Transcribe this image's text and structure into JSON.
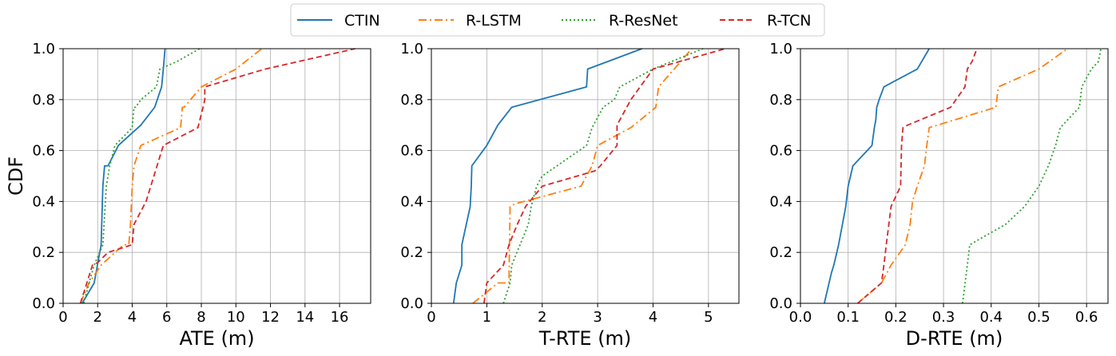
{
  "legend": {
    "placement": "top-center",
    "items": [
      {
        "name": "CTIN",
        "color": "#1f77b4",
        "dash": "solid"
      },
      {
        "name": "R-LSTM",
        "color": "#ff7f0e",
        "dash": "dashdot"
      },
      {
        "name": "R-ResNet",
        "color": "#2ca02c",
        "dash": "dotted"
      },
      {
        "name": "R-TCN",
        "color": "#d62728",
        "dash": "dashed"
      }
    ]
  },
  "chart_data": [
    {
      "type": "line",
      "xlabel": "ATE (m)",
      "ylabel": "CDF",
      "xlim": [
        0,
        17.8
      ],
      "ylim": [
        0,
        1.0
      ],
      "xticks": [
        "0",
        "2",
        "4",
        "6",
        "8",
        "10",
        "12",
        "14",
        "16"
      ],
      "xtick_values": [
        0,
        2,
        4,
        6,
        8,
        10,
        12,
        14,
        16
      ],
      "yticks": [
        "0.0",
        "0.2",
        "0.4",
        "0.6",
        "0.8",
        "1.0"
      ],
      "ytick_values": [
        0,
        0.2,
        0.4,
        0.6,
        0.8,
        1.0
      ],
      "grid": true,
      "series": [
        {
          "name": "CTIN",
          "x": [
            1.1,
            1.8,
            2.2,
            2.3,
            2.4,
            2.6,
            3.2,
            4.5,
            5.3,
            5.7,
            5.8,
            5.9
          ],
          "y": [
            0.0,
            0.08,
            0.23,
            0.46,
            0.54,
            0.54,
            0.62,
            0.7,
            0.77,
            0.85,
            0.92,
            1.0
          ]
        },
        {
          "name": "R-LSTM",
          "x": [
            1.0,
            1.5,
            2.2,
            3.5,
            3.8,
            3.9,
            4.0,
            4.1,
            4.5,
            6.8,
            6.9,
            7.0,
            8.0,
            10.0,
            11.5
          ],
          "y": [
            0.0,
            0.08,
            0.15,
            0.23,
            0.23,
            0.31,
            0.46,
            0.54,
            0.62,
            0.69,
            0.77,
            0.77,
            0.85,
            0.92,
            1.0
          ]
        },
        {
          "name": "R-ResNet",
          "x": [
            1.2,
            1.5,
            1.8,
            2.3,
            2.5,
            2.7,
            3.0,
            4.0,
            4.1,
            4.2,
            4.5,
            5.4,
            5.6,
            6.6,
            7.9
          ],
          "y": [
            0.0,
            0.08,
            0.15,
            0.23,
            0.46,
            0.54,
            0.62,
            0.69,
            0.77,
            0.77,
            0.8,
            0.85,
            0.92,
            0.95,
            1.0
          ]
        },
        {
          "name": "R-TCN",
          "x": [
            1.0,
            1.7,
            2.0,
            2.6,
            4.0,
            4.1,
            4.8,
            5.8,
            7.8,
            8.1,
            8.2,
            8.2,
            11.7,
            16.9
          ],
          "y": [
            0.0,
            0.15,
            0.16,
            0.2,
            0.23,
            0.31,
            0.4,
            0.62,
            0.69,
            0.77,
            0.8,
            0.85,
            0.92,
            1.0
          ]
        }
      ]
    },
    {
      "type": "line",
      "xlabel": "T-RTE (m)",
      "ylabel": "",
      "xlim": [
        0,
        5.55
      ],
      "ylim": [
        0,
        1.0
      ],
      "xticks": [
        "0",
        "1",
        "2",
        "3",
        "4",
        "5"
      ],
      "xtick_values": [
        0,
        1,
        2,
        3,
        4,
        5
      ],
      "yticks": [
        "0.0",
        "0.2",
        "0.4",
        "0.6",
        "0.8",
        "1.0"
      ],
      "ytick_values": [
        0,
        0.2,
        0.4,
        0.6,
        0.8,
        1.0
      ],
      "grid": true,
      "series": [
        {
          "name": "CTIN",
          "x": [
            0.4,
            0.45,
            0.55,
            0.55,
            0.7,
            0.72,
            0.73,
            1.0,
            1.2,
            1.45,
            2.8,
            2.82,
            3.8
          ],
          "y": [
            0.0,
            0.08,
            0.15,
            0.23,
            0.38,
            0.46,
            0.54,
            0.62,
            0.7,
            0.77,
            0.85,
            0.92,
            1.0
          ]
        },
        {
          "name": "R-LSTM",
          "x": [
            0.75,
            1.2,
            1.4,
            1.42,
            1.5,
            2.7,
            2.9,
            3.0,
            3.6,
            4.05,
            4.1,
            4.7
          ],
          "y": [
            0.0,
            0.08,
            0.08,
            0.38,
            0.39,
            0.46,
            0.54,
            0.62,
            0.69,
            0.77,
            0.85,
            1.0
          ]
        },
        {
          "name": "R-ResNet",
          "x": [
            1.3,
            1.42,
            1.45,
            1.6,
            1.75,
            1.8,
            1.9,
            2.0,
            2.8,
            2.9,
            3.1,
            3.3,
            3.4,
            4.0,
            4.9
          ],
          "y": [
            0.0,
            0.08,
            0.15,
            0.23,
            0.31,
            0.38,
            0.46,
            0.5,
            0.62,
            0.69,
            0.77,
            0.8,
            0.85,
            0.92,
            1.0
          ]
        },
        {
          "name": "R-TCN",
          "x": [
            0.95,
            1.0,
            1.3,
            1.4,
            1.55,
            1.7,
            2.0,
            2.95,
            3.05,
            3.35,
            3.35,
            3.6,
            4.0,
            5.3
          ],
          "y": [
            0.0,
            0.08,
            0.15,
            0.23,
            0.31,
            0.38,
            0.46,
            0.52,
            0.54,
            0.62,
            0.7,
            0.8,
            0.92,
            1.0
          ]
        }
      ]
    },
    {
      "type": "line",
      "xlabel": "D-RTE (m)",
      "ylabel": "",
      "xlim": [
        0,
        0.645
      ],
      "ylim": [
        0,
        1.0
      ],
      "xticks": [
        "0.0",
        "0.1",
        "0.2",
        "0.3",
        "0.4",
        "0.5",
        "0.6"
      ],
      "xtick_values": [
        0,
        0.1,
        0.2,
        0.3,
        0.4,
        0.5,
        0.6
      ],
      "yticks": [
        "0.0",
        "0.2",
        "0.4",
        "0.6",
        "0.8",
        "1.0"
      ],
      "ytick_values": [
        0,
        0.2,
        0.4,
        0.6,
        0.8,
        1.0
      ],
      "grid": true,
      "series": [
        {
          "name": "CTIN",
          "x": [
            0.05,
            0.055,
            0.06,
            0.065,
            0.07,
            0.08,
            0.088,
            0.095,
            0.1,
            0.11,
            0.15,
            0.155,
            0.158,
            0.16,
            0.165,
            0.175,
            0.245,
            0.27
          ],
          "y": [
            0.0,
            0.04,
            0.08,
            0.12,
            0.15,
            0.23,
            0.31,
            0.38,
            0.46,
            0.54,
            0.62,
            0.69,
            0.72,
            0.77,
            0.8,
            0.85,
            0.92,
            1.0
          ]
        },
        {
          "name": "R-LSTM",
          "x": [
            0.12,
            0.17,
            0.19,
            0.22,
            0.23,
            0.235,
            0.245,
            0.26,
            0.265,
            0.27,
            0.41,
            0.415,
            0.5,
            0.56
          ],
          "y": [
            0.0,
            0.08,
            0.15,
            0.23,
            0.31,
            0.4,
            0.46,
            0.54,
            0.62,
            0.69,
            0.77,
            0.85,
            0.92,
            1.0
          ]
        },
        {
          "name": "R-ResNet",
          "x": [
            0.34,
            0.35,
            0.355,
            0.43,
            0.47,
            0.5,
            0.52,
            0.535,
            0.545,
            0.585,
            0.59,
            0.61,
            0.625,
            0.63
          ],
          "y": [
            0.0,
            0.15,
            0.23,
            0.31,
            0.38,
            0.46,
            0.54,
            0.62,
            0.69,
            0.77,
            0.85,
            0.92,
            0.95,
            1.0
          ]
        },
        {
          "name": "R-TCN",
          "x": [
            0.12,
            0.17,
            0.175,
            0.18,
            0.19,
            0.2,
            0.21,
            0.212,
            0.215,
            0.225,
            0.315,
            0.345,
            0.35,
            0.36,
            0.37
          ],
          "y": [
            0.0,
            0.08,
            0.15,
            0.23,
            0.38,
            0.42,
            0.46,
            0.62,
            0.69,
            0.7,
            0.77,
            0.85,
            0.92,
            0.95,
            1.0
          ]
        }
      ]
    }
  ]
}
